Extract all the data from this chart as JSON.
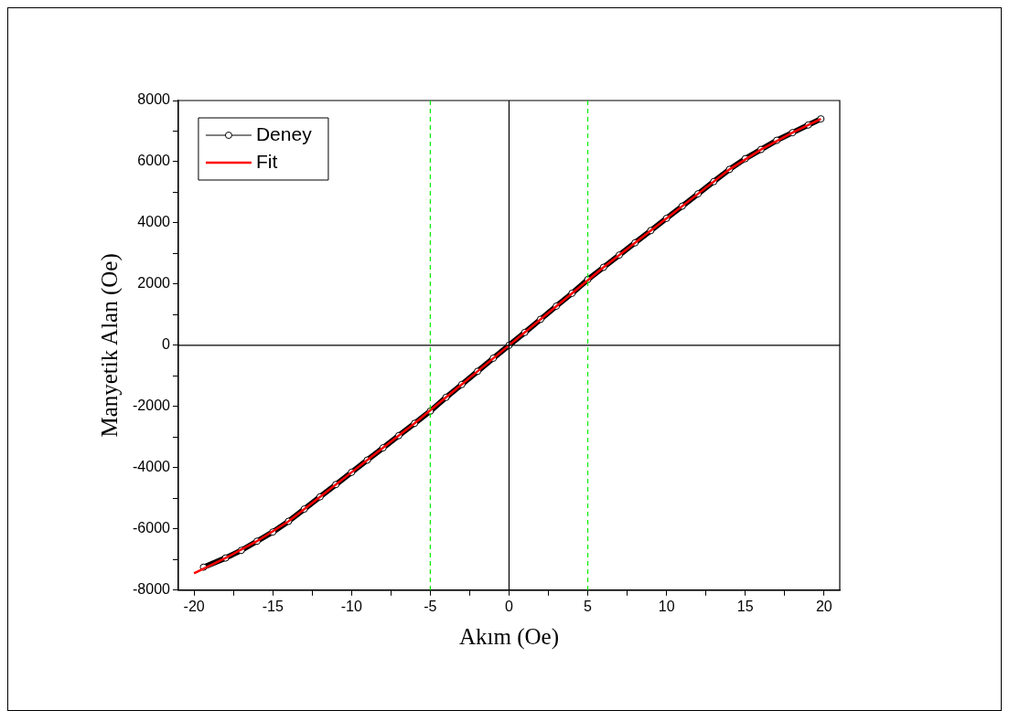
{
  "chart_data": {
    "type": "line",
    "xlabel": "Akım (Oe)",
    "ylabel": "Manyetik Alan (Oe)",
    "xlim": [
      -21,
      21
    ],
    "ylim": [
      -8000,
      8000
    ],
    "xticks": [
      -20,
      {
        "value": -17.5,
        "label": null
      },
      -15,
      {
        "value": -12.5,
        "label": null
      },
      -10,
      {
        "value": -7.5,
        "label": null
      },
      -5,
      {
        "value": -2.5,
        "label": null
      },
      0,
      {
        "value": 2.5,
        "label": null
      },
      5,
      {
        "value": 7.5,
        "label": null
      },
      10,
      {
        "value": 12.5,
        "label": null
      },
      15,
      {
        "value": 17.5,
        "label": null
      },
      20
    ],
    "yticks": [
      -8000,
      {
        "value": -7000,
        "label": null
      },
      -6000,
      {
        "value": -5000,
        "label": null
      },
      -4000,
      {
        "value": -3000,
        "label": null
      },
      -2000,
      {
        "value": -1000,
        "label": null
      },
      0,
      {
        "value": 1000,
        "label": null
      },
      2000,
      {
        "value": 3000,
        "label": null
      },
      4000,
      {
        "value": 5000,
        "label": null
      },
      6000,
      {
        "value": 7000,
        "label": null
      },
      8000
    ],
    "legend": "top left",
    "grid": false,
    "ref_lines": [
      {
        "axis": "x",
        "value": -5,
        "color": "#00ee00",
        "line_style": "dashed"
      },
      {
        "axis": "x",
        "value": 5,
        "color": "#00ee00",
        "line_style": "dashed"
      },
      {
        "axis": "x",
        "value": 0,
        "color": "#000000",
        "line_style": "solid"
      },
      {
        "axis": "y",
        "value": 0,
        "color": "#000000",
        "line_style": "solid"
      }
    ],
    "series": [
      {
        "name": "Deney",
        "color": "#000000",
        "marker": "circle",
        "x": [
          -19.4,
          -18,
          -17,
          -16,
          -15,
          -14,
          -13,
          -12,
          -11,
          -10,
          -9,
          -8,
          -7,
          -6,
          -5,
          -4,
          -3,
          -2,
          -1,
          0,
          1,
          2,
          3,
          4,
          5,
          6,
          7,
          8,
          9,
          10,
          11,
          12,
          13,
          14,
          15,
          16,
          17,
          18,
          19,
          19.8
        ],
        "values": [
          -7250,
          -6950,
          -6700,
          -6400,
          -6100,
          -5750,
          -5350,
          -4950,
          -4550,
          -4150,
          -3750,
          -3350,
          -2950,
          -2550,
          -2150,
          -1700,
          -1280,
          -850,
          -420,
          0,
          420,
          850,
          1280,
          1700,
          2150,
          2550,
          2950,
          3350,
          3750,
          4150,
          4550,
          4950,
          5350,
          5750,
          6100,
          6400,
          6700,
          6950,
          7200,
          7400
        ]
      },
      {
        "name": "Fit",
        "color": "#ff0000",
        "marker": "none",
        "x": [
          -20,
          -18,
          -16,
          -14,
          -12,
          -10,
          -8,
          -6,
          -4,
          -2,
          0,
          2,
          4,
          6,
          8,
          10,
          12,
          14,
          16,
          18,
          19.8
        ],
        "values": [
          -7450,
          -6950,
          -6400,
          -5750,
          -4950,
          -4150,
          -3350,
          -2550,
          -1700,
          -850,
          0,
          850,
          1700,
          2550,
          3350,
          4150,
          4950,
          5750,
          6400,
          6950,
          7400
        ]
      }
    ]
  }
}
